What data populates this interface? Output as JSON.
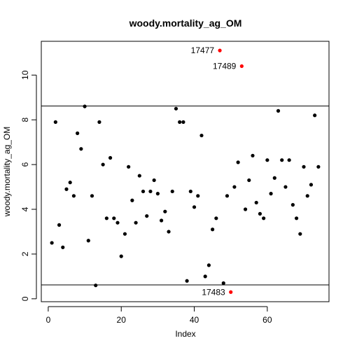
{
  "chart_data": {
    "type": "scatter",
    "title": "woody.mortality_ag_OM",
    "xlabel": "Index",
    "ylabel": "woody.mortality_ag_OM",
    "xlim": [
      -1.9,
      76.9
    ],
    "ylim": [
      -0.13,
      11.51
    ],
    "xticks": [
      0,
      20,
      40,
      60
    ],
    "yticks": [
      0,
      2,
      4,
      6,
      8,
      10
    ],
    "hlines": [
      8.62,
      0.62
    ],
    "colors": {
      "normal": "#000000",
      "outlier": "#ff0000"
    },
    "points": [
      {
        "x": 1,
        "y": 2.5
      },
      {
        "x": 2,
        "y": 7.9
      },
      {
        "x": 3,
        "y": 3.3
      },
      {
        "x": 4,
        "y": 2.3
      },
      {
        "x": 5,
        "y": 4.9
      },
      {
        "x": 6,
        "y": 5.2
      },
      {
        "x": 7,
        "y": 4.6
      },
      {
        "x": 8,
        "y": 7.4
      },
      {
        "x": 9,
        "y": 6.7
      },
      {
        "x": 10,
        "y": 8.6
      },
      {
        "x": 11,
        "y": 2.6
      },
      {
        "x": 12,
        "y": 4.6
      },
      {
        "x": 13,
        "y": 0.6
      },
      {
        "x": 14,
        "y": 7.9
      },
      {
        "x": 15,
        "y": 6.0
      },
      {
        "x": 16,
        "y": 3.6
      },
      {
        "x": 17,
        "y": 6.3
      },
      {
        "x": 18,
        "y": 3.6
      },
      {
        "x": 19,
        "y": 3.4
      },
      {
        "x": 20,
        "y": 1.9
      },
      {
        "x": 21,
        "y": 2.9
      },
      {
        "x": 22,
        "y": 5.9
      },
      {
        "x": 23,
        "y": 4.4
      },
      {
        "x": 24,
        "y": 3.4
      },
      {
        "x": 25,
        "y": 5.5
      },
      {
        "x": 26,
        "y": 4.8
      },
      {
        "x": 27,
        "y": 3.7
      },
      {
        "x": 28,
        "y": 4.8
      },
      {
        "x": 29,
        "y": 5.3
      },
      {
        "x": 30,
        "y": 4.7
      },
      {
        "x": 31,
        "y": 3.5
      },
      {
        "x": 32,
        "y": 3.9
      },
      {
        "x": 33,
        "y": 3.0
      },
      {
        "x": 34,
        "y": 4.8
      },
      {
        "x": 35,
        "y": 8.5
      },
      {
        "x": 36,
        "y": 7.9
      },
      {
        "x": 37,
        "y": 7.9
      },
      {
        "x": 38,
        "y": 0.8
      },
      {
        "x": 39,
        "y": 4.8
      },
      {
        "x": 40,
        "y": 4.1
      },
      {
        "x": 41,
        "y": 4.6
      },
      {
        "x": 42,
        "y": 7.3
      },
      {
        "x": 43,
        "y": 1.0
      },
      {
        "x": 44,
        "y": 1.5
      },
      {
        "x": 45,
        "y": 3.1
      },
      {
        "x": 46,
        "y": 3.6
      },
      {
        "x": 47,
        "y": 11.1,
        "label": "17477",
        "outlier": true
      },
      {
        "x": 48,
        "y": 0.7
      },
      {
        "x": 49,
        "y": 4.6
      },
      {
        "x": 50,
        "y": 0.3,
        "label": "17483",
        "outlier": true
      },
      {
        "x": 51,
        "y": 5.0
      },
      {
        "x": 52,
        "y": 6.1
      },
      {
        "x": 53,
        "y": 10.4,
        "label": "17489",
        "outlier": true
      },
      {
        "x": 54,
        "y": 4.0
      },
      {
        "x": 55,
        "y": 5.3
      },
      {
        "x": 56,
        "y": 6.4
      },
      {
        "x": 57,
        "y": 4.3
      },
      {
        "x": 58,
        "y": 3.8
      },
      {
        "x": 59,
        "y": 3.6
      },
      {
        "x": 60,
        "y": 6.2
      },
      {
        "x": 61,
        "y": 4.7
      },
      {
        "x": 62,
        "y": 5.4
      },
      {
        "x": 63,
        "y": 8.4
      },
      {
        "x": 64,
        "y": 6.2
      },
      {
        "x": 65,
        "y": 5.0
      },
      {
        "x": 66,
        "y": 6.2
      },
      {
        "x": 67,
        "y": 4.2
      },
      {
        "x": 68,
        "y": 3.6
      },
      {
        "x": 69,
        "y": 2.9
      },
      {
        "x": 70,
        "y": 5.9
      },
      {
        "x": 71,
        "y": 4.6
      },
      {
        "x": 72,
        "y": 5.1
      },
      {
        "x": 73,
        "y": 8.2
      },
      {
        "x": 74,
        "y": 5.9
      }
    ]
  }
}
